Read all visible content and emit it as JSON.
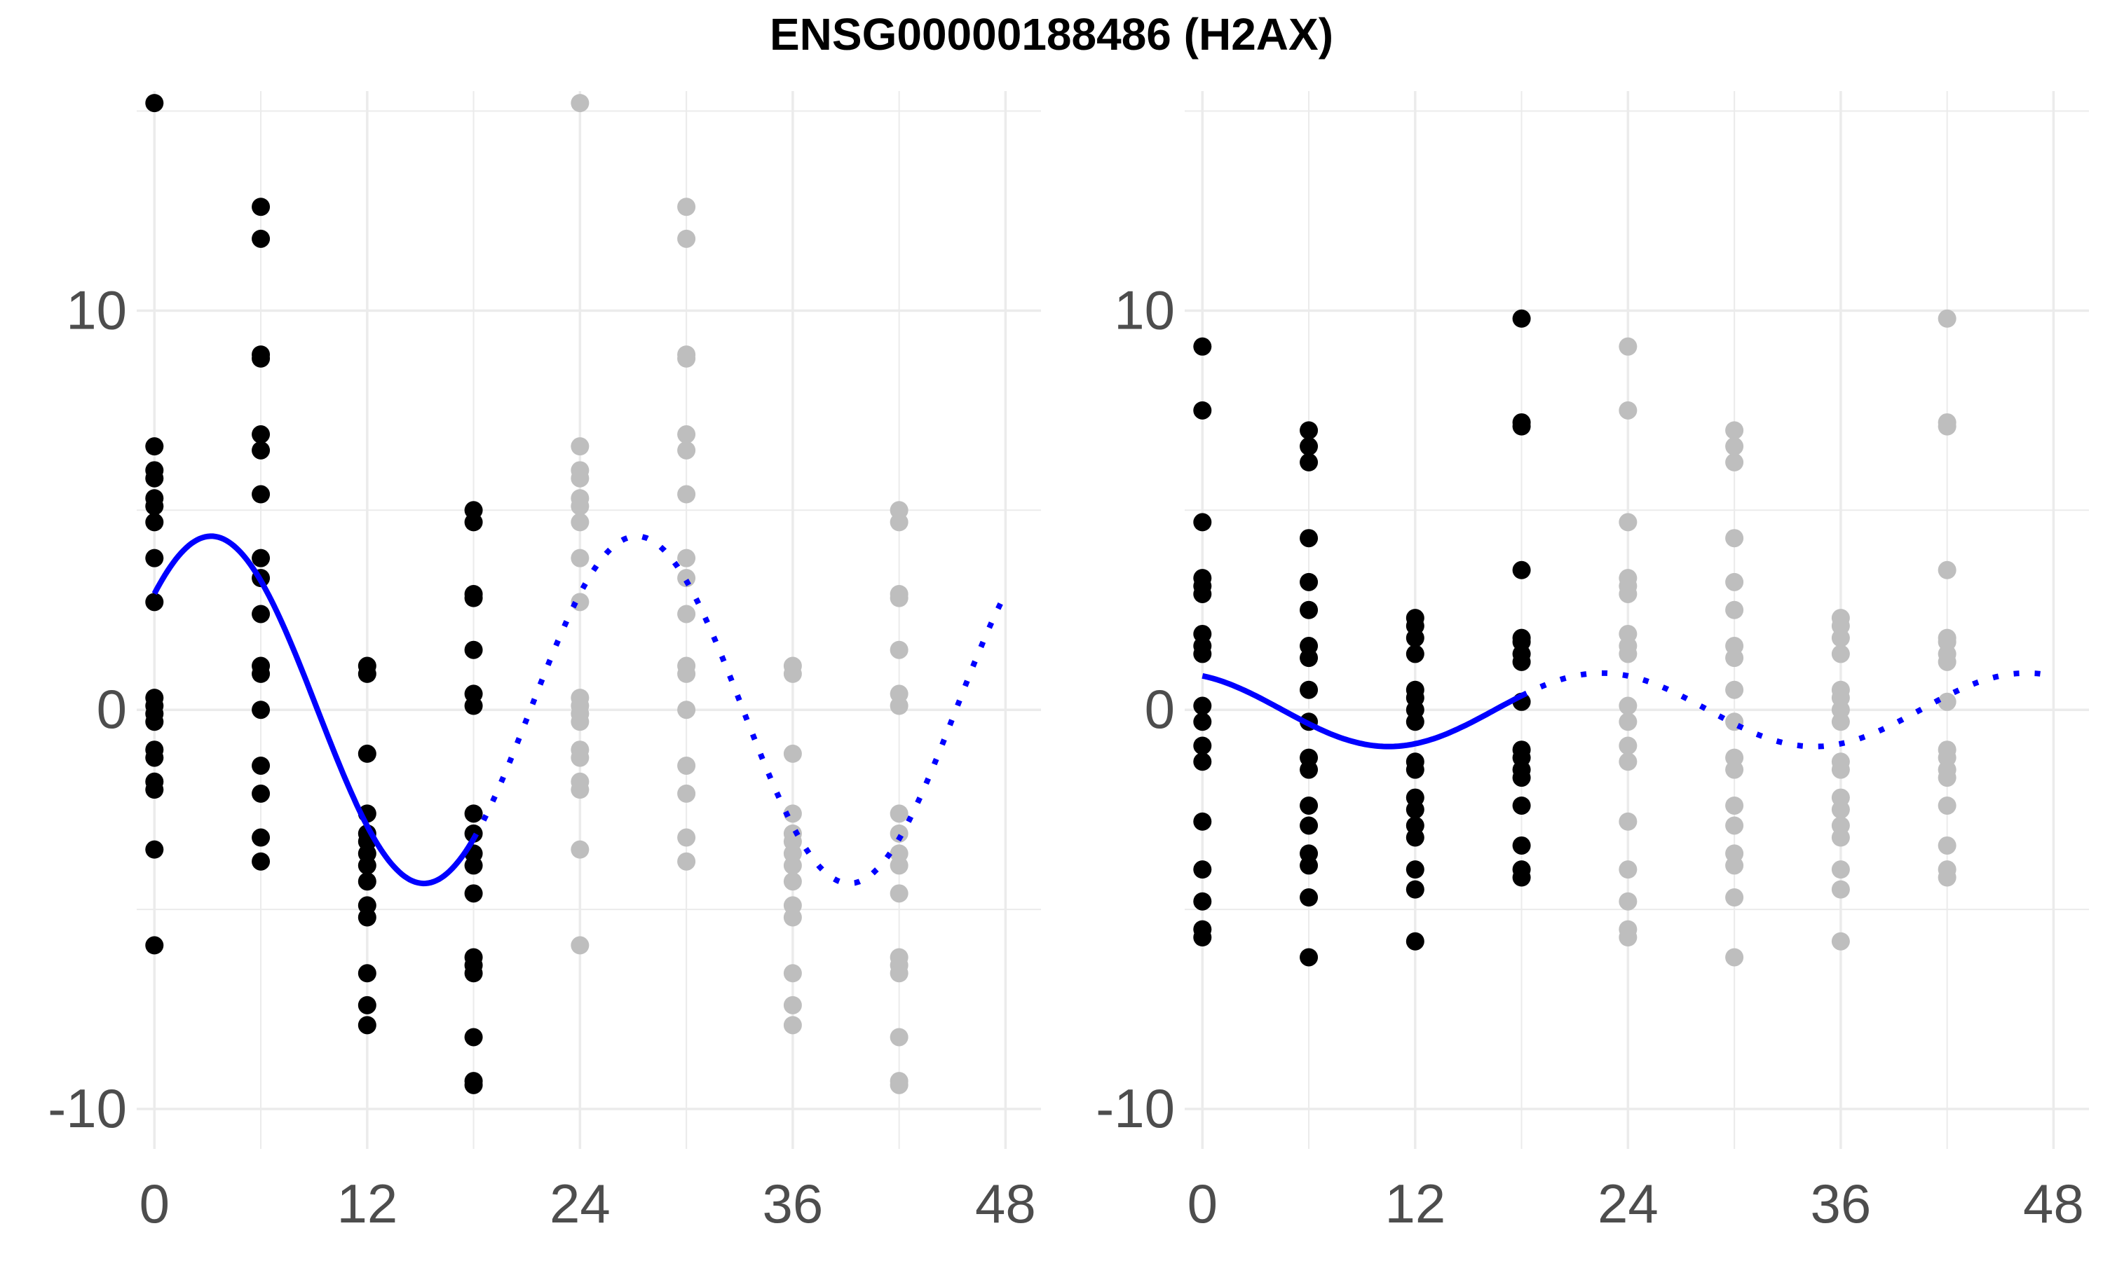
{
  "title": "ENSG00000188486 (H2AX)",
  "colors": {
    "observed_points": "#000000",
    "repeated_points": "#bebebe",
    "fit_line": "#0000ff",
    "grid": "#ebebeb",
    "tick_label": "#4d4d4d"
  },
  "chart_data": [
    {
      "type": "scatter",
      "title": "",
      "xlabel": "",
      "ylabel": "",
      "xlim": [
        -1,
        50
      ],
      "ylim": [
        -11,
        15.5
      ],
      "x_ticks": [
        0,
        12,
        24,
        36,
        48
      ],
      "x_tick_labels": [
        "0",
        "12",
        "24",
        "36",
        "48"
      ],
      "y_ticks": [
        -10,
        0,
        10
      ],
      "y_tick_labels": [
        "-10",
        "0",
        "10"
      ],
      "grid": true,
      "observed_x": [
        0,
        6,
        12,
        18
      ],
      "repeat_shift": 24,
      "points": [
        {
          "x": 0,
          "y": [
            15.2,
            6.6,
            6.0,
            5.8,
            5.3,
            5.1,
            4.7,
            3.8,
            2.7,
            0.3,
            0.1,
            -0.1,
            -0.3,
            -1.0,
            -1.2,
            -1.8,
            -2.0,
            -3.5,
            -5.9
          ]
        },
        {
          "x": 6,
          "y": [
            12.6,
            11.8,
            8.9,
            8.8,
            6.9,
            6.5,
            5.4,
            3.8,
            3.3,
            2.4,
            1.1,
            0.9,
            0.0,
            -1.4,
            -2.1,
            -3.2,
            -3.8
          ]
        },
        {
          "x": 12,
          "y": [
            1.1,
            0.9,
            -1.1,
            -2.6,
            -3.1,
            -3.3,
            -3.6,
            -3.9,
            -4.3,
            -4.9,
            -5.2,
            -6.6,
            -7.4,
            -7.9
          ]
        },
        {
          "x": 18,
          "y": [
            5.0,
            4.7,
            2.9,
            2.8,
            1.5,
            0.4,
            0.1,
            -2.6,
            -3.1,
            -3.6,
            -3.9,
            -4.6,
            -6.2,
            -6.4,
            -6.6,
            -8.2,
            -9.3,
            -9.4
          ]
        }
      ],
      "fit": {
        "form": "mesor + amplitude * cos(2*pi*(x - phase)/24)",
        "mesor": 0,
        "amplitude": 4.35,
        "phase": 3.2,
        "solid_range": [
          0,
          18
        ],
        "dotted_range": [
          18,
          48
        ]
      }
    },
    {
      "type": "scatter",
      "title": "",
      "xlabel": "",
      "ylabel": "",
      "xlim": [
        -1,
        50
      ],
      "ylim": [
        -11,
        15.5
      ],
      "x_ticks": [
        0,
        12,
        24,
        36,
        48
      ],
      "x_tick_labels": [
        "0",
        "12",
        "24",
        "36",
        "48"
      ],
      "y_ticks": [
        -10,
        0,
        10
      ],
      "y_tick_labels": [
        "-10",
        "0",
        "10"
      ],
      "grid": true,
      "observed_x": [
        0,
        6,
        12,
        18
      ],
      "repeat_shift": 24,
      "points": [
        {
          "x": 0,
          "y": [
            9.1,
            7.5,
            4.7,
            3.3,
            3.1,
            2.9,
            1.9,
            1.6,
            1.4,
            0.1,
            -0.3,
            -0.9,
            -1.3,
            -2.8,
            -4.0,
            -4.8,
            -5.5,
            -5.7
          ]
        },
        {
          "x": 6,
          "y": [
            7.0,
            6.6,
            6.2,
            4.3,
            3.2,
            2.5,
            1.6,
            1.3,
            0.5,
            -0.3,
            -1.2,
            -1.5,
            -2.4,
            -2.9,
            -3.6,
            -3.9,
            -4.7,
            -6.2
          ]
        },
        {
          "x": 12,
          "y": [
            2.3,
            2.1,
            1.8,
            1.4,
            0.5,
            0.3,
            0.0,
            -0.3,
            -1.3,
            -1.5,
            -2.2,
            -2.5,
            -2.9,
            -3.2,
            -4.0,
            -4.5,
            -5.8
          ]
        },
        {
          "x": 18,
          "y": [
            9.8,
            7.2,
            7.1,
            3.5,
            1.8,
            1.7,
            1.4,
            1.2,
            0.2,
            -1.0,
            -1.2,
            -1.5,
            -1.7,
            -2.4,
            -3.4,
            -4.0,
            -4.2
          ]
        }
      ],
      "fit": {
        "form": "mesor + amplitude * cos(2*pi*(x - phase)/24)",
        "mesor": 0,
        "amplitude": 0.92,
        "phase": 22.5,
        "solid_range": [
          0,
          18
        ],
        "dotted_range": [
          18,
          48
        ]
      }
    }
  ]
}
